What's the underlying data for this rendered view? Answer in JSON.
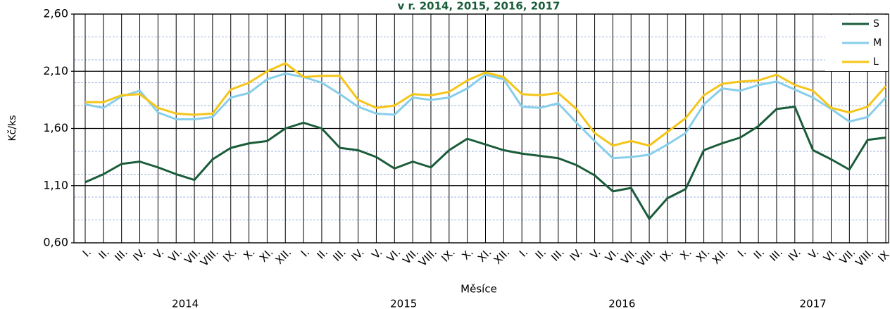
{
  "chart_data": {
    "type": "line",
    "title": "v r. 2014, 2015, 2016, 2017",
    "x_label": "Měsíce",
    "y_label": "Kč/ks",
    "category_groups": [
      {
        "label": "2014",
        "categories": [
          "I.",
          "II.",
          "III.",
          "IV.",
          "V.",
          "VI.",
          "VII.",
          "VIII.",
          "IX.",
          "X.",
          "XI.",
          "XII."
        ]
      },
      {
        "label": "2015",
        "categories": [
          "I.",
          "II.",
          "III.",
          "IV.",
          "V.",
          "VI.",
          "VII.",
          "VIII.",
          "IX.",
          "X.",
          "XI.",
          "XII."
        ]
      },
      {
        "label": "2016",
        "categories": [
          "I.",
          "II.",
          "III.",
          "IV.",
          "V.",
          "VI.",
          "VII.",
          "VIII.",
          "IX.",
          "X.",
          "XI.",
          "XII."
        ]
      },
      {
        "label": "2017",
        "categories": [
          "I.",
          "II.",
          "III.",
          "IV.",
          "V.",
          "VI.",
          "VII.",
          "VIII.",
          "IX."
        ]
      }
    ],
    "series": [
      {
        "name": "S",
        "color": "#1a5c3a",
        "values": [
          1.13,
          1.2,
          1.29,
          1.31,
          1.26,
          1.2,
          1.15,
          1.33,
          1.43,
          1.47,
          1.49,
          1.6,
          1.65,
          1.6,
          1.43,
          1.41,
          1.35,
          1.25,
          1.31,
          1.26,
          1.41,
          1.51,
          1.46,
          1.41,
          1.38,
          1.36,
          1.34,
          1.28,
          1.19,
          1.05,
          1.08,
          0.81,
          0.99,
          1.07,
          1.41,
          1.47,
          1.52,
          1.62,
          1.77,
          1.79,
          1.41,
          1.33,
          1.24,
          1.5,
          1.52
        ]
      },
      {
        "name": "M",
        "color": "#87ceeb",
        "values": [
          1.81,
          1.78,
          1.88,
          1.93,
          1.74,
          1.68,
          1.68,
          1.7,
          1.87,
          1.91,
          2.03,
          2.08,
          2.05,
          2.0,
          1.9,
          1.79,
          1.73,
          1.72,
          1.87,
          1.85,
          1.87,
          1.95,
          2.07,
          2.03,
          1.79,
          1.78,
          1.82,
          1.65,
          1.49,
          1.34,
          1.35,
          1.37,
          1.46,
          1.56,
          1.81,
          1.95,
          1.93,
          1.98,
          2.01,
          1.94,
          1.87,
          1.77,
          1.66,
          1.7,
          1.87
        ]
      },
      {
        "name": "L",
        "color": "#f5c518",
        "values": [
          1.83,
          1.83,
          1.89,
          1.9,
          1.78,
          1.73,
          1.72,
          1.73,
          1.94,
          2.0,
          2.1,
          2.17,
          2.05,
          2.06,
          2.06,
          1.85,
          1.78,
          1.8,
          1.9,
          1.89,
          1.92,
          2.02,
          2.09,
          2.05,
          1.9,
          1.89,
          1.91,
          1.77,
          1.56,
          1.45,
          1.49,
          1.45,
          1.57,
          1.69,
          1.89,
          1.99,
          2.01,
          2.02,
          2.07,
          1.98,
          1.93,
          1.78,
          1.74,
          1.79,
          1.97
        ]
      }
    ],
    "ylim": [
      0.6,
      2.6
    ],
    "yticks": [
      {
        "value": 0.6,
        "label": "0,60"
      },
      {
        "value": 1.1,
        "label": "1,10"
      },
      {
        "value": 1.6,
        "label": "1,60"
      },
      {
        "value": 2.1,
        "label": "2,10"
      },
      {
        "value": 2.6,
        "label": "2,60"
      }
    ],
    "minor_yticks": [
      0.8,
      1.0,
      1.2,
      1.4,
      1.8,
      2.0,
      2.2,
      2.4
    ],
    "grid": true,
    "legend": "top-right"
  }
}
